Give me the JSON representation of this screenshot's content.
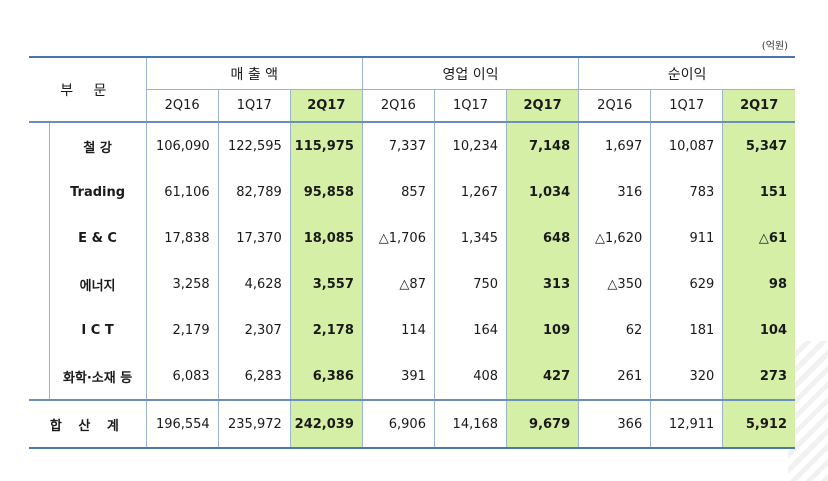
{
  "unit": "(억원)",
  "headers": {
    "segment": "부 문",
    "groups": [
      "매 출 액",
      "영업 이익",
      "순이익"
    ],
    "periods": [
      "2Q16",
      "1Q17",
      "2Q17"
    ]
  },
  "rows": [
    {
      "name": "철 강",
      "vals": [
        "106,090",
        "122,595",
        "115,975",
        "7,337",
        "10,234",
        "7,148",
        "1,697",
        "10,087",
        "5,347"
      ]
    },
    {
      "name": "Trading",
      "vals": [
        "61,106",
        "82,789",
        "95,858",
        "857",
        "1,267",
        "1,034",
        "316",
        "783",
        "151"
      ]
    },
    {
      "name": "E & C",
      "vals": [
        "17,838",
        "17,370",
        "18,085",
        "△1,706",
        "1,345",
        "648",
        "△1,620",
        "911",
        "△61"
      ]
    },
    {
      "name": "에너지",
      "vals": [
        "3,258",
        "4,628",
        "3,557",
        "△87",
        "750",
        "313",
        "△350",
        "629",
        "98"
      ]
    },
    {
      "name": "I C T",
      "vals": [
        "2,179",
        "2,307",
        "2,178",
        "114",
        "164",
        "109",
        "62",
        "181",
        "104"
      ]
    },
    {
      "name": "화학·소재 등",
      "vals": [
        "6,083",
        "6,283",
        "6,386",
        "391",
        "408",
        "427",
        "261",
        "320",
        "273"
      ]
    }
  ],
  "total": {
    "name": "합 산 계",
    "vals": [
      "196,554",
      "235,972",
      "242,039",
      "6,906",
      "14,168",
      "9,679",
      "366",
      "12,911",
      "5,912"
    ]
  }
}
